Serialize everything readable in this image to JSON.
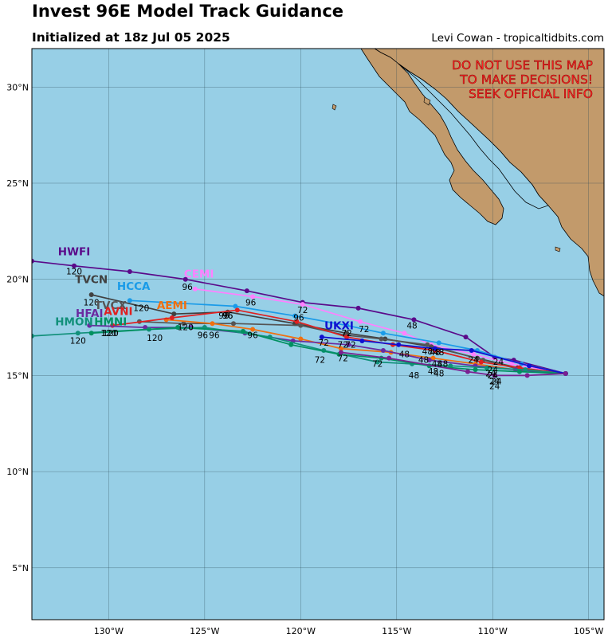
{
  "title": "Invest 96E Model Track Guidance",
  "subtitle": "Initialized at 18z Jul 05 2025",
  "credit": "Levi Cowan - tropicaltidbits.com",
  "warning": [
    "DO NOT USE THIS MAP",
    "TO MAKE DECISIONS!",
    "SEEK OFFICIAL INFO"
  ],
  "colors": {
    "ocean": "#97cfe6",
    "land": "#c29a6b",
    "warning": "#ff2222",
    "grid": "#2b4a55"
  },
  "map_extent": {
    "lon": [
      -134,
      -104.2
    ],
    "lat": [
      2.3,
      32
    ]
  },
  "lon_ticks": [
    {
      "value": -130,
      "label": "130°W"
    },
    {
      "value": -125,
      "label": "125°W"
    },
    {
      "value": -120,
      "label": "120°W"
    },
    {
      "value": -115,
      "label": "115°W"
    },
    {
      "value": -110,
      "label": "110°W"
    },
    {
      "value": -105,
      "label": "105°W"
    }
  ],
  "lat_ticks": [
    {
      "value": 5,
      "label": "5°N"
    },
    {
      "value": 10,
      "label": "10°N"
    },
    {
      "value": 15,
      "label": "15°N"
    },
    {
      "value": 20,
      "label": "20°N"
    },
    {
      "value": 25,
      "label": "25°N"
    },
    {
      "value": 30,
      "label": "30°N"
    }
  ],
  "tracks": [
    {
      "name": "HWFI",
      "color": "#5a0a8a",
      "name_at": [
        -131.8,
        21.25
      ],
      "points": [
        [
          -106.2,
          15.1
        ],
        [
          -108.9,
          15.8
        ],
        [
          -109.9,
          15.95
        ],
        [
          -111.4,
          17.0
        ],
        [
          -114.1,
          17.9
        ],
        [
          -117.0,
          18.5
        ],
        [
          -119.9,
          18.8
        ],
        [
          -122.8,
          19.4
        ],
        [
          -126.0,
          20.0
        ],
        [
          -128.9,
          20.4
        ],
        [
          -131.8,
          20.7
        ],
        [
          -134.0,
          20.95
        ]
      ],
      "hours": [
        {
          "at": [
            -131.8,
            20.25
          ],
          "text": "120"
        }
      ]
    },
    {
      "name": "CEMI",
      "color": "#ff80ff",
      "name_at": [
        -125.3,
        20.1
      ],
      "points": [
        [
          -106.2,
          15.1
        ],
        [
          -109.0,
          15.6
        ],
        [
          -111.0,
          16.1
        ],
        [
          -113.2,
          16.6
        ],
        [
          -114.6,
          17.2
        ],
        [
          -116.9,
          17.8
        ],
        [
          -119.9,
          18.7
        ],
        [
          -122.5,
          19.1
        ],
        [
          -125.5,
          19.5
        ]
      ],
      "hours": [
        {
          "at": [
            -125.9,
            19.45
          ],
          "text": "96"
        }
      ]
    },
    {
      "name": "HCCA",
      "color": "#1a9be8",
      "name_at": [
        -128.7,
        19.45
      ],
      "points": [
        [
          -106.2,
          15.1
        ],
        [
          -108.5,
          15.6
        ],
        [
          -110.8,
          16.3
        ],
        [
          -112.8,
          16.7
        ],
        [
          -115.7,
          17.2
        ],
        [
          -117.6,
          17.6
        ],
        [
          -120.3,
          18.1
        ],
        [
          -123.4,
          18.6
        ],
        [
          -128.9,
          18.9
        ]
      ],
      "hours": [
        {
          "at": [
            -122.6,
            18.65
          ],
          "text": "96"
        },
        {
          "at": [
            -119.9,
            18.25
          ],
          "text": "72"
        },
        {
          "at": [
            -128.3,
            18.35
          ],
          "text": "120"
        }
      ]
    },
    {
      "name": "TVCN",
      "color": "#404040",
      "name_at": [
        -130.9,
        19.8
      ],
      "points": [
        [
          -106.2,
          15.1
        ],
        [
          -108.7,
          15.4
        ],
        [
          -110.8,
          15.9
        ],
        [
          -113.2,
          16.5
        ],
        [
          -115.6,
          16.9
        ],
        [
          -117.6,
          17.2
        ],
        [
          -120.3,
          17.7
        ],
        [
          -123.8,
          18.3
        ],
        [
          -126.6,
          18.2
        ],
        [
          -130.9,
          19.2
        ]
      ],
      "hours": [
        {
          "at": [
            -130.9,
            18.65
          ],
          "text": "120"
        }
      ]
    },
    {
      "name": "TVCX",
      "color": "#555555",
      "name_at": [
        -129.9,
        18.45
      ],
      "points": [
        [
          -106.2,
          15.1
        ],
        [
          -108.5,
          15.3
        ],
        [
          -110.5,
          15.8
        ],
        [
          -113.4,
          16.6
        ],
        [
          -115.8,
          16.9
        ],
        [
          -117.7,
          17.1
        ],
        [
          -120.0,
          17.6
        ],
        [
          -123.5,
          17.7
        ],
        [
          -126.1,
          17.7
        ],
        [
          -128.4,
          17.8
        ]
      ],
      "hours": [
        {
          "at": [
            -123.8,
            17.95
          ],
          "text": "96"
        }
      ]
    },
    {
      "name": "AEMI",
      "color": "#f07010",
      "name_at": [
        -126.7,
        18.45
      ],
      "points": [
        [
          -106.2,
          15.1
        ],
        [
          -108.8,
          15.3
        ],
        [
          -110.9,
          15.6
        ],
        [
          -113.1,
          15.9
        ],
        [
          -115.3,
          16.2
        ],
        [
          -117.9,
          16.4
        ],
        [
          -120.0,
          16.9
        ],
        [
          -122.5,
          17.4
        ],
        [
          -124.6,
          17.7
        ],
        [
          -127.0,
          17.9
        ]
      ],
      "hours": [
        {
          "at": [
            -122.5,
            16.95
          ],
          "text": "96"
        },
        {
          "at": [
            -126.0,
            17.35
          ],
          "text": "120"
        }
      ]
    },
    {
      "name": "AVNI",
      "color": "#e02020",
      "name_at": [
        -129.5,
        18.15
      ],
      "points": [
        [
          -106.2,
          15.1
        ],
        [
          -108.6,
          15.4
        ],
        [
          -110.6,
          15.7
        ],
        [
          -113.0,
          16.3
        ],
        [
          -115.2,
          16.6
        ],
        [
          -117.6,
          17.0
        ],
        [
          -120.2,
          17.8
        ],
        [
          -123.3,
          18.4
        ],
        [
          -126.7,
          18.0
        ],
        [
          -129.8,
          17.6
        ]
      ],
      "hours": [
        {
          "at": [
            -123.8,
            17.95
          ],
          "text": "96"
        },
        {
          "at": [
            -129.9,
            17.05
          ],
          "text": "120"
        }
      ]
    },
    {
      "name": "HFAI",
      "color": "#6a2aa0",
      "name_at": [
        -131.0,
        18.05
      ],
      "points": [
        [
          -106.2,
          15.1
        ],
        [
          -108.8,
          15.3
        ],
        [
          -110.9,
          15.5
        ],
        [
          -113.3,
          15.8
        ],
        [
          -115.7,
          16.3
        ],
        [
          -117.5,
          16.6
        ],
        [
          -120.4,
          16.8
        ],
        [
          -122.9,
          17.2
        ],
        [
          -125.7,
          17.5
        ],
        [
          -128.1,
          17.5
        ],
        [
          -131.0,
          17.6
        ]
      ],
      "hours": [
        {
          "at": [
            -125.1,
            16.95
          ],
          "text": "96"
        }
      ]
    },
    {
      "name": "HMON",
      "color": "#11907a",
      "name_at": [
        -131.8,
        17.6
      ],
      "points": [
        [
          -106.2,
          15.1
        ],
        [
          -108.3,
          15.3
        ],
        [
          -110.3,
          15.4
        ],
        [
          -112.2,
          15.5
        ],
        [
          -114.2,
          15.6
        ],
        [
          -116.0,
          15.7
        ],
        [
          -118.8,
          16.3
        ],
        [
          -121.6,
          17.0
        ],
        [
          -125.0,
          17.5
        ],
        [
          -127.9,
          17.4
        ],
        [
          -131.6,
          17.2
        ],
        [
          -134.0,
          17.05
        ]
      ],
      "hours": [
        {
          "at": [
            -131.6,
            16.65
          ],
          "text": "120"
        },
        {
          "at": [
            -127.6,
            16.8
          ],
          "text": "120"
        }
      ]
    },
    {
      "name": "HMNI",
      "color": "#009060",
      "name_at": [
        -129.9,
        17.6
      ],
      "points": [
        [
          -106.2,
          15.1
        ],
        [
          -108.6,
          15.2
        ],
        [
          -110.9,
          15.3
        ],
        [
          -113.3,
          15.5
        ],
        [
          -115.8,
          15.9
        ],
        [
          -118.0,
          16.1
        ],
        [
          -120.5,
          16.6
        ],
        [
          -123.0,
          17.3
        ],
        [
          -126.4,
          17.5
        ],
        [
          -130.9,
          17.2
        ]
      ],
      "hours": [
        {
          "at": [
            -130.0,
            17.05
          ],
          "text": "120"
        }
      ]
    },
    {
      "name": "UKXI",
      "color": "#1010d0",
      "name_at": [
        -118.0,
        17.4
      ],
      "points": [
        [
          -106.2,
          15.1
        ],
        [
          -108.1,
          15.5
        ],
        [
          -111.1,
          16.3
        ],
        [
          -113.0,
          16.4
        ],
        [
          -114.9,
          16.6
        ],
        [
          -116.8,
          16.8
        ],
        [
          -118.9,
          17.0
        ]
      ],
      "hours": [
        {
          "at": [
            -118.8,
            16.55
          ],
          "text": "72"
        },
        {
          "at": [
            -113.4,
            16.1
          ],
          "text": "48"
        }
      ]
    },
    {
      "name": "",
      "color": "#7a2090",
      "name_at": [
        -117.8,
        15.9
      ],
      "points": [
        [
          -106.2,
          15.1
        ],
        [
          -108.2,
          15.0
        ],
        [
          -109.9,
          15.0
        ],
        [
          -111.3,
          15.2
        ],
        [
          -115.4,
          15.9
        ],
        [
          -117.9,
          16.2
        ]
      ],
      "hours": [
        {
          "at": [
            -117.8,
            15.75
          ],
          "text": "72"
        },
        {
          "at": [
            -109.9,
            14.55
          ],
          "text": "24"
        }
      ]
    }
  ],
  "extra_hours": [
    {
      "at": [
        -116.7,
        17.25
      ],
      "text": "72"
    },
    {
      "at": [
        -117.6,
        17.05
      ],
      "text": "72"
    },
    {
      "at": [
        -117.4,
        16.45
      ],
      "text": "72"
    },
    {
      "at": [
        -117.8,
        16.45
      ],
      "text": "72"
    },
    {
      "at": [
        -119.0,
        15.65
      ],
      "text": "72"
    },
    {
      "at": [
        -116.0,
        15.45
      ],
      "text": "72"
    },
    {
      "at": [
        -114.2,
        17.45
      ],
      "text": "48"
    },
    {
      "at": [
        -113.0,
        16.05
      ],
      "text": "48"
    },
    {
      "at": [
        -112.8,
        16.05
      ],
      "text": "48"
    },
    {
      "at": [
        -114.6,
        15.95
      ],
      "text": "48"
    },
    {
      "at": [
        -113.6,
        15.65
      ],
      "text": "48"
    },
    {
      "at": [
        -112.9,
        15.45
      ],
      "text": "48"
    },
    {
      "at": [
        -112.6,
        15.45
      ],
      "text": "48"
    },
    {
      "at": [
        -112.8,
        14.95
      ],
      "text": "48"
    },
    {
      "at": [
        -113.1,
        15.05
      ],
      "text": "48"
    },
    {
      "at": [
        -114.1,
        14.85
      ],
      "text": "48"
    },
    {
      "at": [
        -111.0,
        15.65
      ],
      "text": "24"
    },
    {
      "at": [
        -109.7,
        15.55
      ],
      "text": "24"
    },
    {
      "at": [
        -110.0,
        15.15
      ],
      "text": "24"
    },
    {
      "at": [
        -110.1,
        14.95
      ],
      "text": "24"
    },
    {
      "at": [
        -110.0,
        14.85
      ],
      "text": "24"
    },
    {
      "at": [
        -109.8,
        14.55
      ],
      "text": "24"
    },
    {
      "at": [
        -109.9,
        14.3
      ],
      "text": "24"
    },
    {
      "at": [
        -120.1,
        17.85
      ],
      "text": "96"
    },
    {
      "at": [
        -124.5,
        16.95
      ],
      "text": "96"
    },
    {
      "at": [
        -124.0,
        17.95
      ],
      "text": "96"
    }
  ]
}
